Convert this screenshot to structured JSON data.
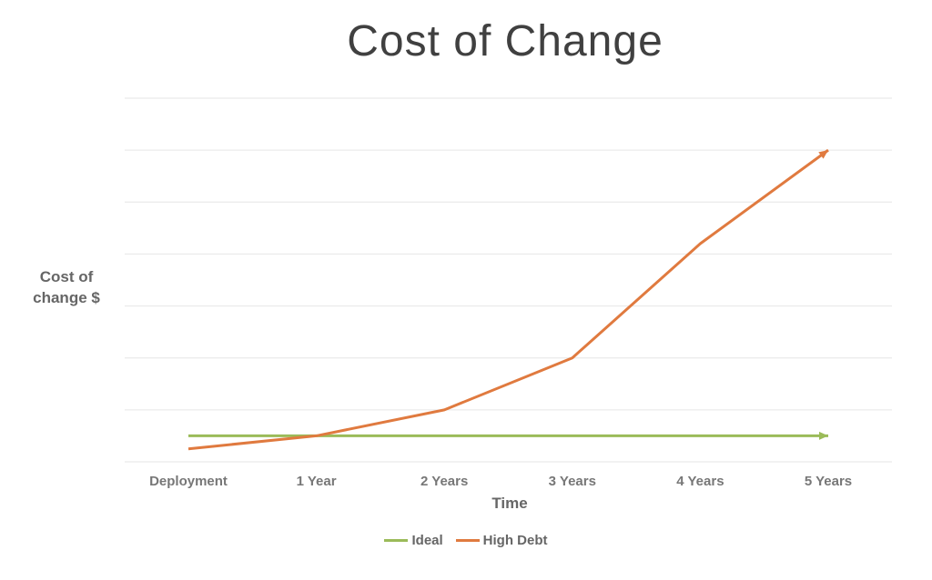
{
  "chart_data": {
    "type": "line",
    "title": "Cost of Change",
    "xlabel": "Time",
    "ylabel_lines": [
      "Cost of",
      "change $"
    ],
    "categories": [
      "Deployment",
      "1 Year",
      "2 Years",
      "3 Years",
      "4 Years",
      "5 Years"
    ],
    "ylim": [
      0,
      7
    ],
    "y_gridlines": [
      0,
      1,
      2,
      3,
      4,
      5,
      6,
      7
    ],
    "grid": true,
    "legend_position": "bottom",
    "series": [
      {
        "name": "Ideal",
        "color": "#9bbb59",
        "values": [
          0.5,
          0.5,
          0.5,
          0.5,
          0.5,
          0.5
        ],
        "arrow_end": true
      },
      {
        "name": "High Debt",
        "color": "#e07a3f",
        "values": [
          0.25,
          0.5,
          1.0,
          2.0,
          4.2,
          6.0
        ],
        "arrow_end": true
      }
    ]
  }
}
